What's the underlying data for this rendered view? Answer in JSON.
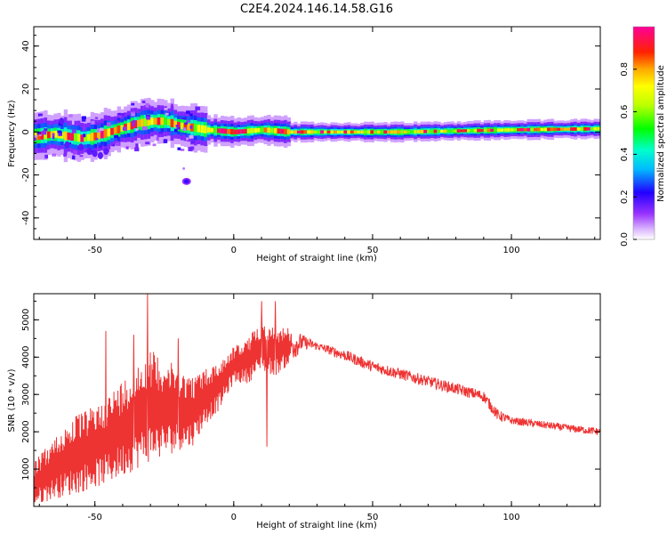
{
  "title": "C2E4.2024.146.14.58.G16",
  "chart_data": [
    {
      "type": "heatmap",
      "xlabel": "Height of straight line (km)",
      "ylabel": "Frequency (Hz)",
      "xlim": [
        -72,
        132
      ],
      "ylim": [
        -50,
        49
      ],
      "x_ticks": [
        -50,
        0,
        50,
        100
      ],
      "y_ticks": [
        -40,
        -20,
        0,
        20,
        40
      ],
      "colorbar": {
        "label": "Normalized spectral amplitude",
        "range": [
          0,
          1
        ],
        "ticks": [
          0.0,
          0.2,
          0.4,
          0.6,
          0.8
        ],
        "colormap": "rainbow (white→purple→blue→cyan→green→yellow→orange→red→magenta)"
      },
      "ridge_center_hz": [
        [
          -72,
          -2
        ],
        [
          -65,
          -1
        ],
        [
          -60,
          -2
        ],
        [
          -55,
          -3
        ],
        [
          -50,
          -2
        ],
        [
          -45,
          0
        ],
        [
          -40,
          2
        ],
        [
          -35,
          4
        ],
        [
          -30,
          5
        ],
        [
          -25,
          5
        ],
        [
          -20,
          3
        ],
        [
          -15,
          2
        ],
        [
          -10,
          1
        ],
        [
          -5,
          0.5
        ],
        [
          0,
          0
        ],
        [
          10,
          1
        ],
        [
          20,
          0
        ],
        [
          40,
          0
        ],
        [
          60,
          0
        ],
        [
          80,
          0.5
        ],
        [
          100,
          1
        ],
        [
          132,
          1.5
        ]
      ],
      "isolated_blob": {
        "x": -17,
        "y": -23
      }
    },
    {
      "type": "line",
      "xlabel": "Height of straight line (km)",
      "ylabel": "SNR (10 * v/v)",
      "xlim": [
        -72,
        132
      ],
      "ylim": [
        0,
        5700
      ],
      "x_ticks": [
        -50,
        0,
        50,
        100
      ],
      "y_ticks": [
        1000,
        2000,
        3000,
        4000,
        5000
      ],
      "color": "#ee3333",
      "envelope": {
        "x": [
          -72,
          -65,
          -58,
          -50,
          -45,
          -40,
          -35,
          -30,
          -25,
          -20,
          -15,
          -10,
          -5,
          0,
          5,
          10,
          15,
          20,
          25,
          30,
          40,
          50,
          60,
          70,
          80,
          90,
          95,
          100,
          110,
          120,
          132
        ],
        "low": [
          0,
          200,
          300,
          500,
          600,
          800,
          1000,
          1200,
          1300,
          1500,
          1600,
          2200,
          2600,
          3300,
          3300,
          3600,
          3500,
          3800,
          4200,
          4200,
          3900,
          3600,
          3400,
          3200,
          3000,
          2800,
          2300,
          2200,
          2100,
          2000,
          1900
        ],
        "high": [
          1200,
          1800,
          2400,
          2700,
          3000,
          3400,
          3800,
          4200,
          4000,
          3700,
          3500,
          3700,
          3900,
          4300,
          4500,
          5000,
          4800,
          4800,
          4600,
          4400,
          4200,
          3900,
          3700,
          3500,
          3300,
          3100,
          2600,
          2400,
          2300,
          2200,
          2100
        ]
      },
      "peaks": [
        [
          -31,
          5700
        ],
        [
          10,
          5500
        ],
        [
          15,
          5500
        ],
        [
          -46,
          4700
        ],
        [
          -36,
          4600
        ],
        [
          -20,
          4500
        ],
        [
          12,
          1600
        ]
      ]
    }
  ]
}
